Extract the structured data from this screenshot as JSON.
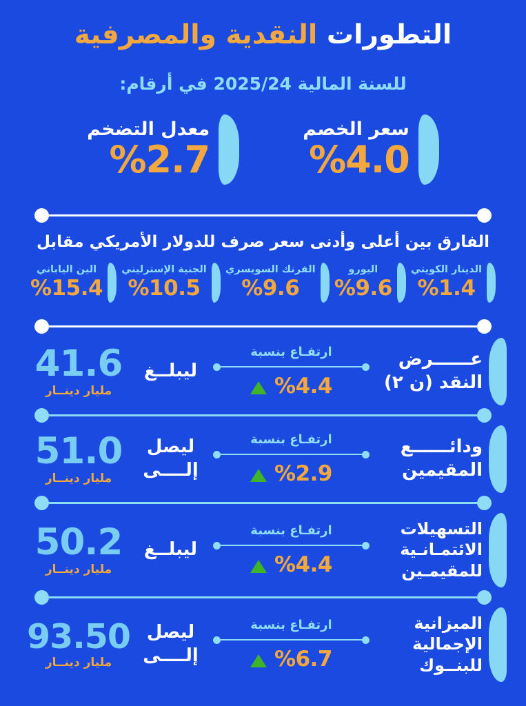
{
  "colors": {
    "background": "#1B4AE0",
    "accent_orange": "#F2A83E",
    "accent_cyan": "#8FDCF6",
    "number_blue": "#79CDF3",
    "bar_blue": "#86D8F4",
    "up_green": "#3FB428",
    "white": "#FFFFFF"
  },
  "header": {
    "title_white": "التطورات",
    "title_orange": "النقدية والمصرفية",
    "subtitle": "للسنة المالية 2025/24 في أرقام:"
  },
  "top_stats": [
    {
      "label": "سعر الخصم",
      "value": "%4.0"
    },
    {
      "label": "معدل التضخم",
      "value": "%2.7"
    }
  ],
  "fx": {
    "heading": "الفارق بين أعلى وأدنى سعر صرف للدولار الأمريكي مقابل",
    "items": [
      {
        "label": "الدينار الكويتي",
        "value": "%1.4"
      },
      {
        "label": "اليورو",
        "value": "%9.6"
      },
      {
        "label": "الفرنك السويسري",
        "value": "%9.6"
      },
      {
        "label": "الجنية الإسترليني",
        "value": "%10.5"
      },
      {
        "label": "الين الياباني",
        "value": "%15.4"
      }
    ]
  },
  "indicators": [
    {
      "label_lines": [
        "عــــــرض",
        "النقد (ن ٢)"
      ],
      "change_label": "ارتفـاع بنسبة",
      "change_value": "%4.4",
      "verb_lines": [
        "ليبلــغ"
      ],
      "amount": "41.6",
      "unit": "مليار دينــار"
    },
    {
      "label_lines": [
        "ودائــــــع",
        "المقيمين"
      ],
      "change_label": "ارتفـاع بنسبة",
      "change_value": "%2.9",
      "verb_lines": [
        "ليصل",
        "إلــــى"
      ],
      "amount": "51.0",
      "unit": "مليار دينــار"
    },
    {
      "label_lines": [
        "التسهيلات",
        "الائتمـانـية",
        "للمقيمـين"
      ],
      "change_label": "ارتفـاع بنسبة",
      "change_value": "%4.4",
      "verb_lines": [
        "ليبلــغ"
      ],
      "amount": "50.2",
      "unit": "مليار دينــار"
    },
    {
      "label_lines": [
        "الميزانية",
        "الإجمالية",
        "للبنــوك"
      ],
      "change_label": "ارتفـاع بنسبة",
      "change_value": "%6.7",
      "verb_lines": [
        "ليصل",
        "إلــــى"
      ],
      "amount": "93.50",
      "unit": "مليار دينــار"
    }
  ],
  "chart_data": {
    "type": "table",
    "title": "التطورات النقدية والمصرفية للسنة المالية 2025/24",
    "key_rates_pct": [
      {
        "name": "سعر الخصم",
        "value": 4.0
      },
      {
        "name": "معدل التضخم",
        "value": 2.7
      }
    ],
    "usd_exchange_rate_spread_pct": [
      {
        "currency": "الدينار الكويتي",
        "value": 1.4
      },
      {
        "currency": "اليورو",
        "value": 9.6
      },
      {
        "currency": "الفرنك السويسري",
        "value": 9.6
      },
      {
        "currency": "الجنية الإسترليني",
        "value": 10.5
      },
      {
        "currency": "الين الياباني",
        "value": 15.4
      }
    ],
    "banking_indicators": [
      {
        "name": "عرض النقد (ن ٢)",
        "change_pct": 4.4,
        "level": 41.6,
        "unit": "مليار دينار"
      },
      {
        "name": "ودائع المقيمين",
        "change_pct": 2.9,
        "level": 51.0,
        "unit": "مليار دينار"
      },
      {
        "name": "التسهيلات الائتمانية للمقيمين",
        "change_pct": 4.4,
        "level": 50.2,
        "unit": "مليار دينار"
      },
      {
        "name": "الميزانية الإجمالية للبنوك",
        "change_pct": 6.7,
        "level": 93.5,
        "unit": "مليار دينار"
      }
    ]
  }
}
